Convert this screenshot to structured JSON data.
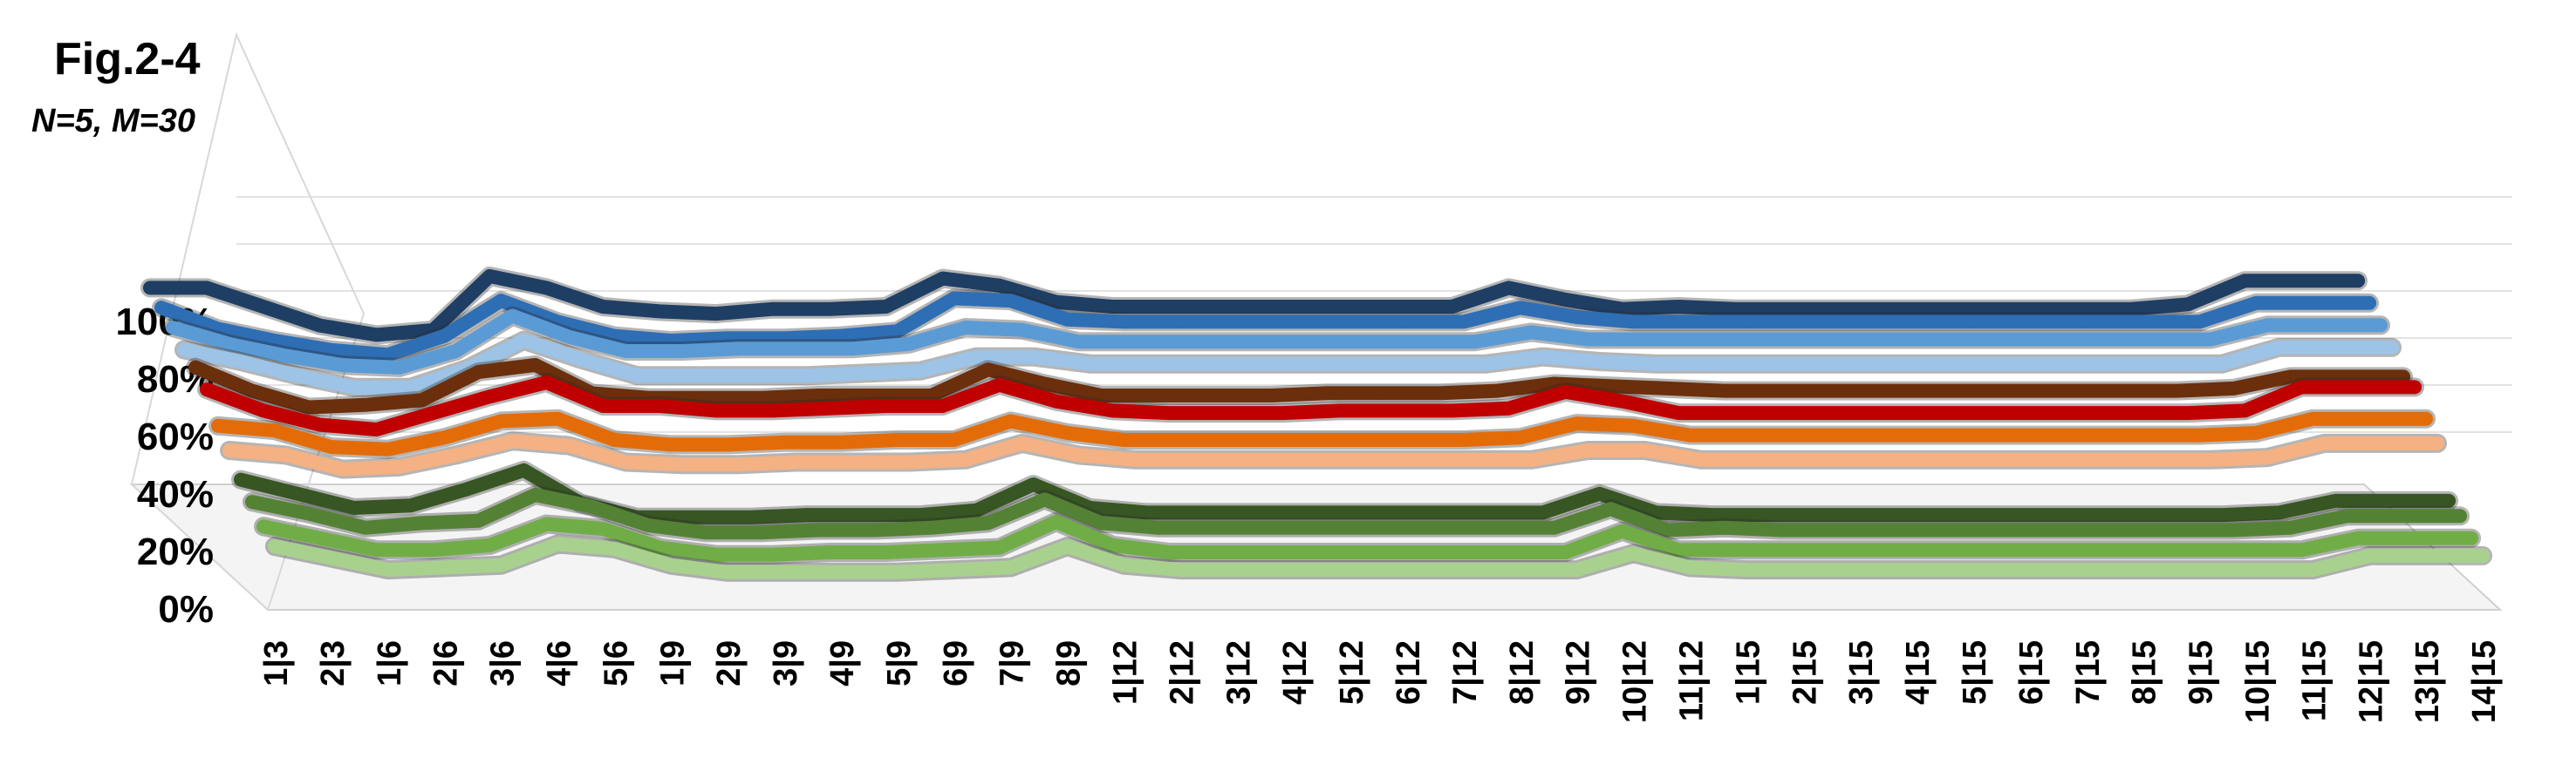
{
  "title": "Fig.2-4",
  "subtitle": "N=5, M=30",
  "chart_data": {
    "type": "line",
    "title": "Fig.2-4",
    "subtitle": "N=5, M=30",
    "ylim": [
      0,
      100
    ],
    "yticks": [
      "0%",
      "20%",
      "40%",
      "60%",
      "80%",
      "100%"
    ],
    "categories": [
      "1|3",
      "2|3",
      "1|6",
      "2|6",
      "3|6",
      "4|6",
      "5|6",
      "1|9",
      "2|9",
      "3|9",
      "4|9",
      "5|9",
      "6|9",
      "7|9",
      "8|9",
      "1|12",
      "2|12",
      "3|12",
      "4|12",
      "5|12",
      "6|12",
      "7|12",
      "8|12",
      "9|12",
      "10|12",
      "11|12",
      "1|15",
      "2|15",
      "3|15",
      "4|15",
      "5|15",
      "6|15",
      "7|15",
      "8|15",
      "9|15",
      "10|15",
      "11|15",
      "12|15",
      "13|15",
      "14|15"
    ],
    "series": [
      {
        "color": "#1F3E64",
        "values": [
          88,
          88,
          80,
          72,
          68,
          70,
          93,
          88,
          80,
          78,
          77,
          79,
          79,
          80,
          92,
          89,
          82,
          80,
          80,
          80,
          80,
          80,
          80,
          80,
          88,
          83,
          79,
          80,
          79,
          79,
          79,
          79,
          79,
          79,
          79,
          79,
          81,
          91,
          91,
          91
        ]
      },
      {
        "color": "#2E6EB5",
        "values": [
          84,
          75,
          70,
          66,
          64,
          72,
          87,
          78,
          72,
          70,
          71,
          71,
          72,
          74,
          88,
          87,
          79,
          78,
          78,
          78,
          78,
          78,
          78,
          78,
          84,
          80,
          78,
          78,
          78,
          78,
          78,
          78,
          78,
          78,
          78,
          78,
          78,
          86,
          86,
          86
        ]
      },
      {
        "color": "#5B9BD5",
        "values": [
          80,
          73,
          68,
          64,
          63,
          70,
          85,
          76,
          70,
          70,
          71,
          71,
          71,
          73,
          80,
          79,
          74,
          74,
          74,
          74,
          74,
          74,
          74,
          74,
          78,
          75,
          75,
          75,
          75,
          75,
          75,
          75,
          75,
          75,
          75,
          75,
          75,
          81,
          81,
          81
        ]
      },
      {
        "color": "#9DC3E6",
        "values": [
          75,
          70,
          64,
          59,
          59,
          67,
          79,
          71,
          64,
          64,
          64,
          64,
          65,
          66,
          72,
          72,
          69,
          69,
          69,
          69,
          69,
          69,
          69,
          69,
          72,
          70,
          69,
          69,
          69,
          69,
          69,
          69,
          69,
          69,
          69,
          69,
          69,
          76,
          76,
          76
        ]
      },
      {
        "color": "#6B2F0C",
        "values": [
          72,
          62,
          55,
          56,
          58,
          70,
          73,
          61,
          59,
          59,
          59,
          60,
          60,
          60,
          71,
          65,
          60,
          60,
          60,
          60,
          61,
          61,
          61,
          62,
          65,
          64,
          63,
          62,
          62,
          62,
          62,
          62,
          62,
          62,
          62,
          62,
          63,
          68,
          68,
          68
        ]
      },
      {
        "color": "#C00000",
        "values": [
          67,
          58,
          52,
          50,
          57,
          64,
          70,
          60,
          60,
          58,
          58,
          59,
          60,
          60,
          69,
          62,
          58,
          57,
          57,
          57,
          58,
          58,
          58,
          59,
          66,
          62,
          57,
          57,
          57,
          57,
          57,
          57,
          57,
          57,
          57,
          57,
          58,
          68,
          68,
          68
        ]
      },
      {
        "color": "#E36C09",
        "values": [
          56,
          54,
          47,
          46,
          51,
          58,
          59,
          50,
          48,
          48,
          49,
          49,
          50,
          50,
          58,
          53,
          50,
          50,
          50,
          50,
          50,
          50,
          50,
          51,
          57,
          56,
          52,
          52,
          52,
          52,
          52,
          52,
          52,
          52,
          52,
          52,
          53,
          59,
          59,
          59
        ]
      },
      {
        "color": "#F4B183",
        "values": [
          50,
          48,
          42,
          43,
          48,
          54,
          52,
          45,
          44,
          44,
          45,
          45,
          45,
          46,
          53,
          48,
          46,
          46,
          46,
          46,
          46,
          46,
          46,
          46,
          50,
          50,
          46,
          46,
          46,
          46,
          46,
          46,
          46,
          46,
          46,
          46,
          47,
          53,
          53,
          53
        ]
      },
      {
        "color": "#375623",
        "values": [
          42,
          36,
          30,
          31,
          38,
          46,
          32,
          26,
          26,
          26,
          27,
          27,
          27,
          29,
          40,
          30,
          28,
          28,
          28,
          28,
          28,
          28,
          28,
          28,
          36,
          28,
          27,
          27,
          27,
          27,
          27,
          27,
          27,
          27,
          27,
          27,
          28,
          33,
          33,
          33
        ]
      },
      {
        "color": "#548235",
        "values": [
          37,
          32,
          26,
          28,
          29,
          40,
          35,
          27,
          24,
          24,
          25,
          25,
          26,
          28,
          38,
          28,
          26,
          26,
          26,
          26,
          26,
          26,
          26,
          26,
          34,
          25,
          26,
          25,
          25,
          25,
          25,
          25,
          25,
          25,
          25,
          25,
          26,
          31,
          31,
          31
        ]
      },
      {
        "color": "#70AD47",
        "values": [
          31,
          26,
          21,
          21,
          23,
          32,
          30,
          22,
          19,
          19,
          20,
          20,
          21,
          22,
          33,
          23,
          20,
          20,
          20,
          20,
          20,
          20,
          20,
          20,
          29,
          21,
          21,
          21,
          21,
          21,
          21,
          21,
          21,
          21,
          21,
          21,
          21,
          26,
          26,
          26
        ]
      },
      {
        "color": "#A9D18E",
        "values": [
          27,
          22,
          17,
          18,
          19,
          28,
          26,
          19,
          16,
          16,
          16,
          16,
          17,
          18,
          27,
          19,
          17,
          17,
          17,
          17,
          17,
          17,
          17,
          17,
          24,
          18,
          17,
          17,
          17,
          17,
          17,
          17,
          17,
          17,
          17,
          17,
          17,
          23,
          23,
          23
        ]
      }
    ]
  }
}
